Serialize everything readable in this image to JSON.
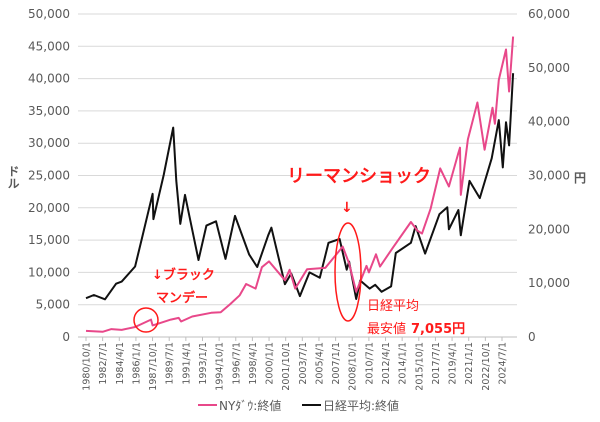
{
  "chart_data": {
    "type": "line",
    "title": "",
    "left_axis": {
      "label": "ドル",
      "range": [
        0,
        50000
      ],
      "ticks": [
        "0",
        "5,000",
        "10,000",
        "15,000",
        "20,000",
        "25,000",
        "30,000",
        "35,000",
        "40,000",
        "45,000",
        "50,000"
      ]
    },
    "right_axis": {
      "label": "円",
      "range": [
        0,
        60000
      ],
      "ticks": [
        "0",
        "10,000",
        "20,000",
        "30,000",
        "40,000",
        "50,000",
        "60,000"
      ]
    },
    "x_ticks": [
      "1980/10/1",
      "1982/7/1",
      "1984/4/1",
      "1986/1/1",
      "1987/10/1",
      "1989/7/1",
      "1991/4/1",
      "1993/1/1",
      "1994/10/1",
      "1996/7/1",
      "1998/4/1",
      "2000/1/1",
      "2001/10/1",
      "2003/7/1",
      "2005/4/1",
      "2007/1/1",
      "2008/10/1",
      "2010/7/1",
      "2012/4/1",
      "2014/1/1",
      "2015/10/1",
      "2017/7/1",
      "2019/4/1",
      "2021/1/1",
      "2022/10/1",
      "2024/7/1"
    ],
    "grid": true,
    "legend_position": "bottom",
    "series": [
      {
        "name": "NYﾀﾞｳ:終値",
        "axis": "left",
        "color": "#e8488a",
        "points": [
          [
            "1980/10",
            950
          ],
          [
            "1982/7",
            800
          ],
          [
            "1983/6",
            1220
          ],
          [
            "1984/7",
            1100
          ],
          [
            "1985/12",
            1550
          ],
          [
            "1987/8",
            2700
          ],
          [
            "1987/10",
            1800
          ],
          [
            "1988/6",
            2100
          ],
          [
            "1989/9",
            2700
          ],
          [
            "1990/7",
            2950
          ],
          [
            "1990/10",
            2400
          ],
          [
            "1991/12",
            3170
          ],
          [
            "1993/12",
            3750
          ],
          [
            "1994/12",
            3830
          ],
          [
            "1995/12",
            5100
          ],
          [
            "1996/12",
            6450
          ],
          [
            "1997/8",
            8200
          ],
          [
            "1998/8",
            7500
          ],
          [
            "1999/4",
            10800
          ],
          [
            "2000/1",
            11700
          ],
          [
            "2001/9",
            8800
          ],
          [
            "2002/3",
            10400
          ],
          [
            "2002/10",
            7500
          ],
          [
            "2004/1",
            10500
          ],
          [
            "2005/12",
            10700
          ],
          [
            "2007/10",
            14000
          ],
          [
            "2008/6",
            11400
          ],
          [
            "2009/3",
            7000
          ],
          [
            "2010/4",
            11000
          ],
          [
            "2010/7",
            10000
          ],
          [
            "2011/4",
            12800
          ],
          [
            "2011/9",
            10900
          ],
          [
            "2013/1",
            13800
          ],
          [
            "2014/12",
            17800
          ],
          [
            "2015/8",
            16500
          ],
          [
            "2016/2",
            16000
          ],
          [
            "2017/1",
            19900
          ],
          [
            "2018/1",
            26100
          ],
          [
            "2018/12",
            23300
          ],
          [
            "2019/12",
            28500
          ],
          [
            "2020/2",
            29300
          ],
          [
            "2020/3",
            22000
          ],
          [
            "2020/12",
            30600
          ],
          [
            "2021/12",
            36300
          ],
          [
            "2022/9",
            29000
          ],
          [
            "2023/7",
            35500
          ],
          [
            "2023/10",
            33000
          ],
          [
            "2024/3",
            39800
          ],
          [
            "2024/12",
            44500
          ],
          [
            "2025/4",
            38000
          ],
          [
            "2025/9",
            46500
          ]
        ]
      },
      {
        "name": "日経平均:終値",
        "axis": "right",
        "color": "#111111",
        "points": [
          [
            "1980/10",
            7200
          ],
          [
            "1981/8",
            7800
          ],
          [
            "1982/10",
            7000
          ],
          [
            "1983/12",
            9900
          ],
          [
            "1984/7",
            10300
          ],
          [
            "1985/12",
            13100
          ],
          [
            "1986/8",
            18000
          ],
          [
            "1987/10",
            26600
          ],
          [
            "1987/11",
            21900
          ],
          [
            "1988/12",
            30100
          ],
          [
            "1989/12",
            38900
          ],
          [
            "1990/4",
            29000
          ],
          [
            "1990/9",
            21000
          ],
          [
            "1991/3",
            26400
          ],
          [
            "1992/8",
            14300
          ],
          [
            "1993/6",
            20700
          ],
          [
            "1994/6",
            21500
          ],
          [
            "1995/6",
            14500
          ],
          [
            "1996/6",
            22500
          ],
          [
            "1997/12",
            15300
          ],
          [
            "1998/10",
            13000
          ],
          [
            "1999/12",
            18900
          ],
          [
            "2000/4",
            20300
          ],
          [
            "2001/9",
            9800
          ],
          [
            "2002/5",
            11800
          ],
          [
            "2003/4",
            7600
          ],
          [
            "2004/4",
            12000
          ],
          [
            "2005/5",
            11000
          ],
          [
            "2006/4",
            17500
          ],
          [
            "2007/6",
            18200
          ],
          [
            "2008/3",
            12500
          ],
          [
            "2008/6",
            14000
          ],
          [
            "2009/3",
            7055
          ],
          [
            "2009/8",
            10500
          ],
          [
            "2010/8",
            9000
          ],
          [
            "2011/3",
            9700
          ],
          [
            "2011/11",
            8400
          ],
          [
            "2012/11",
            9400
          ],
          [
            "2013/5",
            15600
          ],
          [
            "2014/12",
            17500
          ],
          [
            "2015/6",
            20600
          ],
          [
            "2016/6",
            15500
          ],
          [
            "2017/12",
            22800
          ],
          [
            "2018/10",
            24100
          ],
          [
            "2018/12",
            20000
          ],
          [
            "2019/12",
            23600
          ],
          [
            "2020/3",
            18900
          ],
          [
            "2021/2",
            29000
          ],
          [
            "2022/3",
            25800
          ],
          [
            "2023/6",
            33200
          ],
          [
            "2024/3",
            40300
          ],
          [
            "2024/8",
            31500
          ],
          [
            "2024/12",
            39900
          ],
          [
            "2025/4",
            35600
          ],
          [
            "2025/9",
            49000
          ]
        ]
      }
    ],
    "annotations": {
      "black_monday_1": "↓ブラック",
      "black_monday_2": "マンデー",
      "lehman": "リーマンショック",
      "lehman_arrow": "↓",
      "nikkei_low_1": "日経平均",
      "nikkei_low_2": "最安値",
      "nikkei_low_value": "7,055円"
    }
  }
}
